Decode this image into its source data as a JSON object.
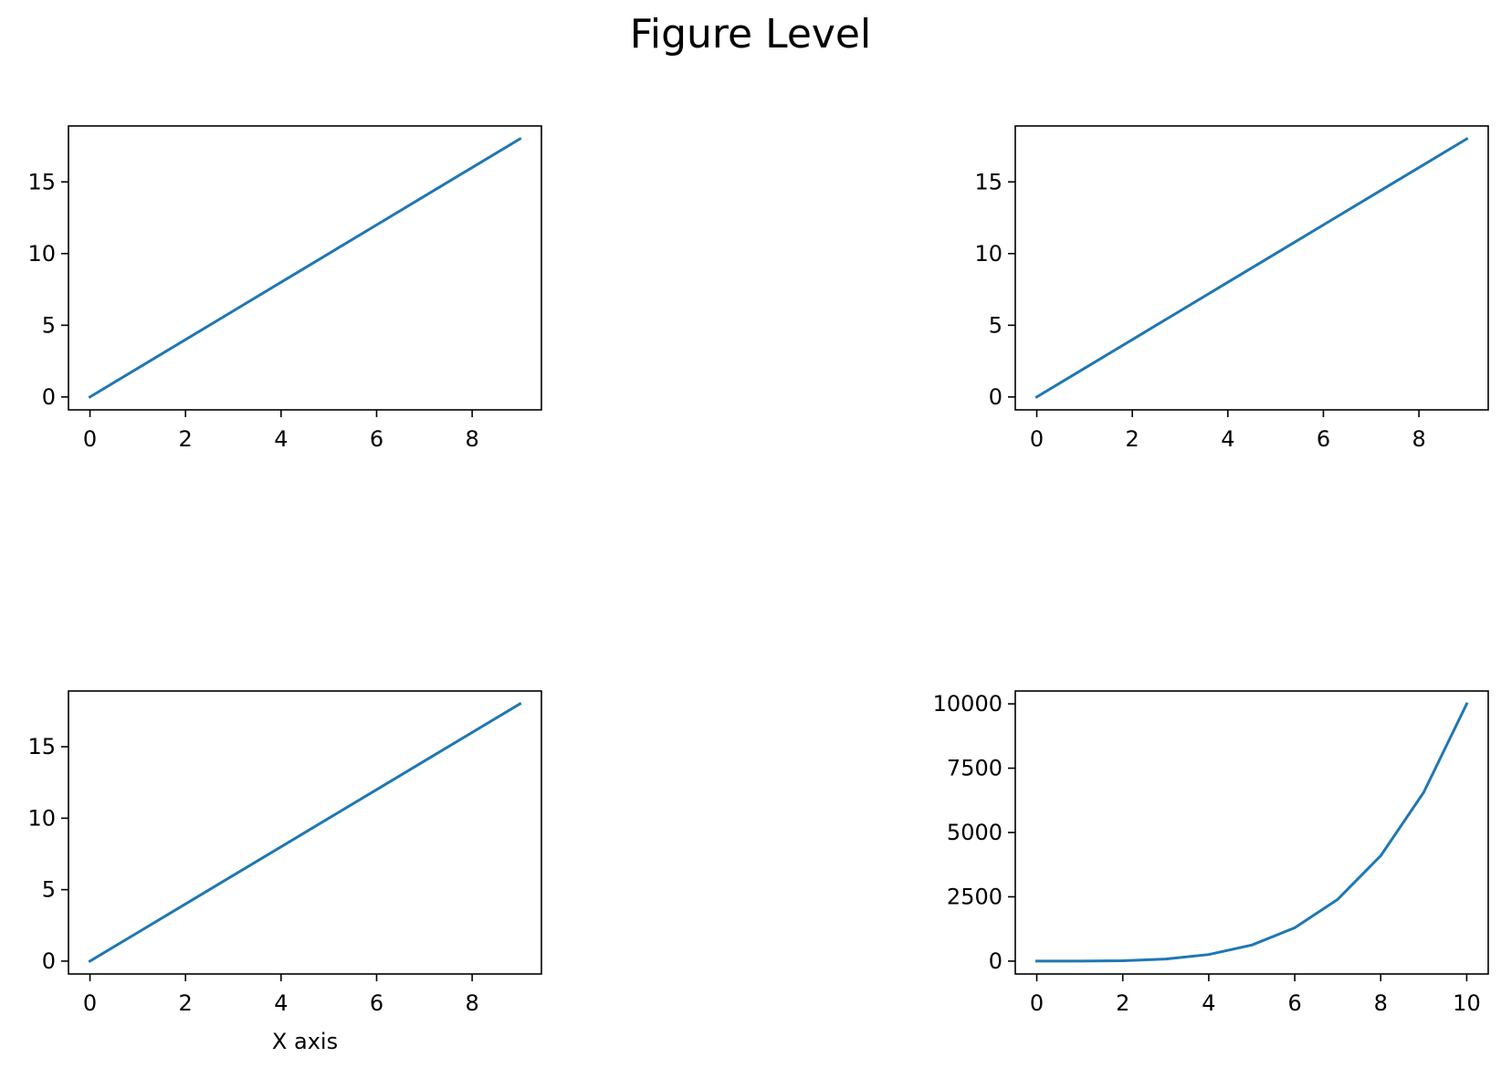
{
  "figure": {
    "title": "Figure Level"
  },
  "chart_data": [
    {
      "type": "line",
      "title": "",
      "xlabel": "",
      "ylabel": "",
      "xlim": [
        -0.45,
        9.45
      ],
      "ylim": [
        -0.9,
        18.9
      ],
      "xticks": [
        0,
        2,
        4,
        6,
        8
      ],
      "yticks": [
        0,
        5,
        10,
        15
      ],
      "grid": false,
      "series": [
        {
          "x": [
            0,
            1,
            2,
            3,
            4,
            5,
            6,
            7,
            8,
            9
          ],
          "y": [
            0,
            2,
            4,
            6,
            8,
            10,
            12,
            14,
            16,
            18
          ],
          "color": "#1f77b4"
        }
      ]
    },
    {
      "type": "line",
      "title": "",
      "xlabel": "",
      "ylabel": "",
      "xlim": [
        -0.45,
        9.45
      ],
      "ylim": [
        -0.9,
        18.9
      ],
      "xticks": [
        0,
        2,
        4,
        6,
        8
      ],
      "yticks": [
        0,
        5,
        10,
        15
      ],
      "grid": false,
      "series": [
        {
          "x": [
            0,
            1,
            2,
            3,
            4,
            5,
            6,
            7,
            8,
            9
          ],
          "y": [
            0,
            2,
            4,
            6,
            8,
            10,
            12,
            14,
            16,
            18
          ],
          "color": "#1f77b4"
        }
      ]
    },
    {
      "type": "line",
      "title": "",
      "xlabel": "X axis",
      "ylabel": "",
      "xlim": [
        -0.45,
        9.45
      ],
      "ylim": [
        -0.9,
        18.9
      ],
      "xticks": [
        0,
        2,
        4,
        6,
        8
      ],
      "yticks": [
        0,
        5,
        10,
        15
      ],
      "grid": false,
      "series": [
        {
          "x": [
            0,
            1,
            2,
            3,
            4,
            5,
            6,
            7,
            8,
            9
          ],
          "y": [
            0,
            2,
            4,
            6,
            8,
            10,
            12,
            14,
            16,
            18
          ],
          "color": "#1f77b4"
        }
      ]
    },
    {
      "type": "line",
      "title": "",
      "xlabel": "",
      "ylabel": "",
      "xlim": [
        -0.5,
        10.5
      ],
      "ylim": [
        -500,
        10500
      ],
      "xticks": [
        0,
        2,
        4,
        6,
        8,
        10
      ],
      "yticks": [
        0,
        2500,
        5000,
        7500,
        10000
      ],
      "grid": false,
      "series": [
        {
          "x": [
            0,
            1,
            2,
            3,
            4,
            5,
            6,
            7,
            8,
            9,
            10
          ],
          "y": [
            0,
            1,
            16,
            81,
            256,
            625,
            1296,
            2401,
            4096,
            6561,
            10000
          ],
          "color": "#1f77b4"
        }
      ]
    }
  ]
}
